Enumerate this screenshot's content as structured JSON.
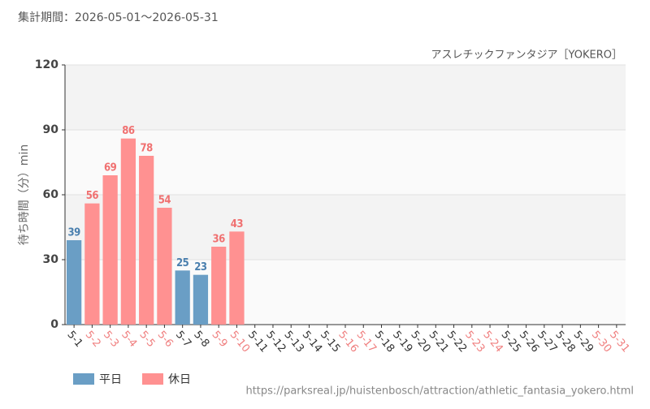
{
  "chart_data": {
    "type": "bar",
    "title": "集計期間：2026-05-01～2026-05-31",
    "subtitle": "アスレチックファンタジア［YOKERO］",
    "y_label": "待ち時間（分）min",
    "source": "https://parksreal.jp/huistenbosch/attraction/athletic_fantasia_yokero.html",
    "categories": [
      "5-1",
      "5-2",
      "5-3",
      "5-4",
      "5-5",
      "5-6",
      "5-7",
      "5-8",
      "5-9",
      "5-10",
      "5-11",
      "5-12",
      "5-13",
      "5-14",
      "5-15",
      "5-16",
      "5-17",
      "5-18",
      "5-19",
      "5-20",
      "5-21",
      "5-22",
      "5-23",
      "5-24",
      "5-25",
      "5-26",
      "5-27",
      "5-28",
      "5-29",
      "5-30",
      "5-31"
    ],
    "category_colors": [
      "#333333",
      "#f07f7f",
      "#f07f7f",
      "#f07f7f",
      "#f07f7f",
      "#f07f7f",
      "#333333",
      "#333333",
      "#f07f7f",
      "#f07f7f",
      "#333333",
      "#333333",
      "#333333",
      "#333333",
      "#333333",
      "#f07f7f",
      "#f07f7f",
      "#333333",
      "#333333",
      "#333333",
      "#333333",
      "#333333",
      "#f07f7f",
      "#f07f7f",
      "#333333",
      "#333333",
      "#333333",
      "#333333",
      "#333333",
      "#f07f7f",
      "#f07f7f"
    ],
    "series": [
      {
        "name": "平日",
        "color": "#6a9ec5",
        "label_color": "#4a7fae",
        "values": [
          39,
          null,
          null,
          null,
          null,
          null,
          25,
          23,
          null,
          null,
          null,
          null,
          null,
          null,
          null,
          null,
          null,
          null,
          null,
          null,
          null,
          null,
          null,
          null,
          null,
          null,
          null,
          null,
          null,
          null,
          null
        ]
      },
      {
        "name": "休日",
        "color": "#ff9191",
        "label_color": "#f07070",
        "values": [
          null,
          56,
          69,
          86,
          78,
          54,
          null,
          null,
          36,
          43,
          null,
          null,
          null,
          null,
          null,
          null,
          null,
          null,
          null,
          null,
          null,
          null,
          null,
          null,
          null,
          null,
          null,
          null,
          null,
          null,
          null
        ]
      }
    ],
    "ylim": [
      0,
      120
    ],
    "yticks": [
      0,
      30,
      60,
      90,
      120
    ],
    "grid": true
  }
}
